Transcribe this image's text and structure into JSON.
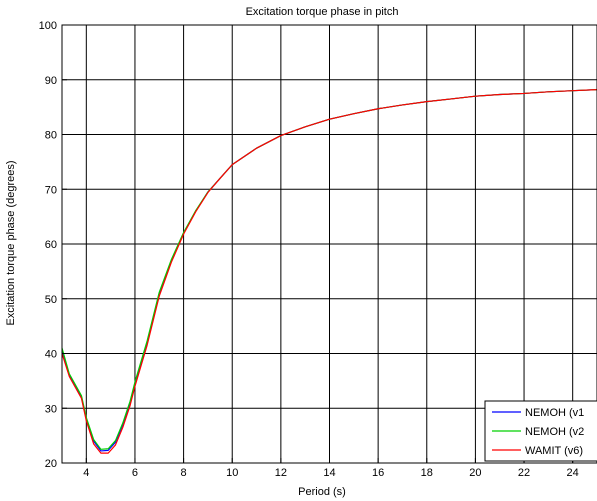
{
  "chart_data": {
    "type": "line",
    "title": "Excitation torque phase in pitch",
    "xlabel": "Period (s)",
    "ylabel": "Excitation torque phase (degrees)",
    "xlim": [
      3,
      25
    ],
    "ylim": [
      20,
      100
    ],
    "xticks": [
      4,
      6,
      8,
      10,
      12,
      14,
      16,
      18,
      20,
      22,
      24
    ],
    "yticks": [
      20,
      30,
      40,
      50,
      60,
      70,
      80,
      90,
      100
    ],
    "grid": true,
    "legend_position": "bottom-right",
    "series": [
      {
        "name": "NEMOH (v1",
        "color": "#0000ff",
        "x": [
          3,
          3.3,
          3.8,
          4,
          4.3,
          4.6,
          4.9,
          5.2,
          5.5,
          5.8,
          6,
          6.5,
          7,
          7.5,
          8,
          8.5,
          9,
          9.5,
          10,
          11,
          12,
          13,
          14,
          15,
          16,
          17,
          18,
          19,
          20,
          21,
          22,
          23,
          24,
          25
        ],
        "y": [
          40.5,
          36,
          32,
          28,
          24,
          22.2,
          22.3,
          23.8,
          27,
          31,
          34.5,
          42,
          51,
          57,
          62,
          66,
          69.5,
          72,
          74.5,
          77.5,
          79.8,
          81.4,
          82.8,
          83.8,
          84.7,
          85.4,
          86,
          86.5,
          87,
          87.3,
          87.5,
          87.8,
          88,
          88.2
        ]
      },
      {
        "name": "NEMOH (v2",
        "color": "#00d000",
        "x": [
          3,
          3.3,
          3.8,
          4,
          4.3,
          4.6,
          4.9,
          5.2,
          5.5,
          5.8,
          6,
          6.5,
          7,
          7.5,
          8,
          8.5,
          9,
          9.5,
          10,
          11,
          12,
          13,
          14,
          15,
          16,
          17,
          18,
          19,
          20,
          21,
          22,
          23,
          24,
          25
        ],
        "y": [
          41,
          36.3,
          32.3,
          28.3,
          24.3,
          22.5,
          22.6,
          24.1,
          27.3,
          31.3,
          34.8,
          42.3,
          51.2,
          57.2,
          62.1,
          66.1,
          69.5,
          72,
          74.5,
          77.5,
          79.8,
          81.4,
          82.8,
          83.8,
          84.7,
          85.4,
          86,
          86.5,
          87,
          87.3,
          87.5,
          87.8,
          88,
          88.2
        ]
      },
      {
        "name": "WAMIT (v6)",
        "color": "#ff0000",
        "x": [
          3,
          3.3,
          3.8,
          4,
          4.3,
          4.6,
          4.9,
          5.2,
          5.5,
          5.8,
          6,
          6.5,
          7,
          7.5,
          8,
          8.5,
          9,
          9.5,
          10,
          11,
          12,
          13,
          14,
          15,
          16,
          17,
          18,
          19,
          20,
          21,
          22,
          23,
          24,
          25
        ],
        "y": [
          40,
          35.8,
          31.8,
          27.7,
          23.5,
          21.8,
          21.8,
          23.3,
          26.5,
          30.5,
          34,
          41.5,
          50.5,
          56.7,
          61.8,
          65.9,
          69.4,
          72,
          74.5,
          77.5,
          79.8,
          81.4,
          82.8,
          83.8,
          84.7,
          85.4,
          86,
          86.5,
          87,
          87.3,
          87.5,
          87.8,
          88,
          88.2
        ]
      }
    ]
  }
}
